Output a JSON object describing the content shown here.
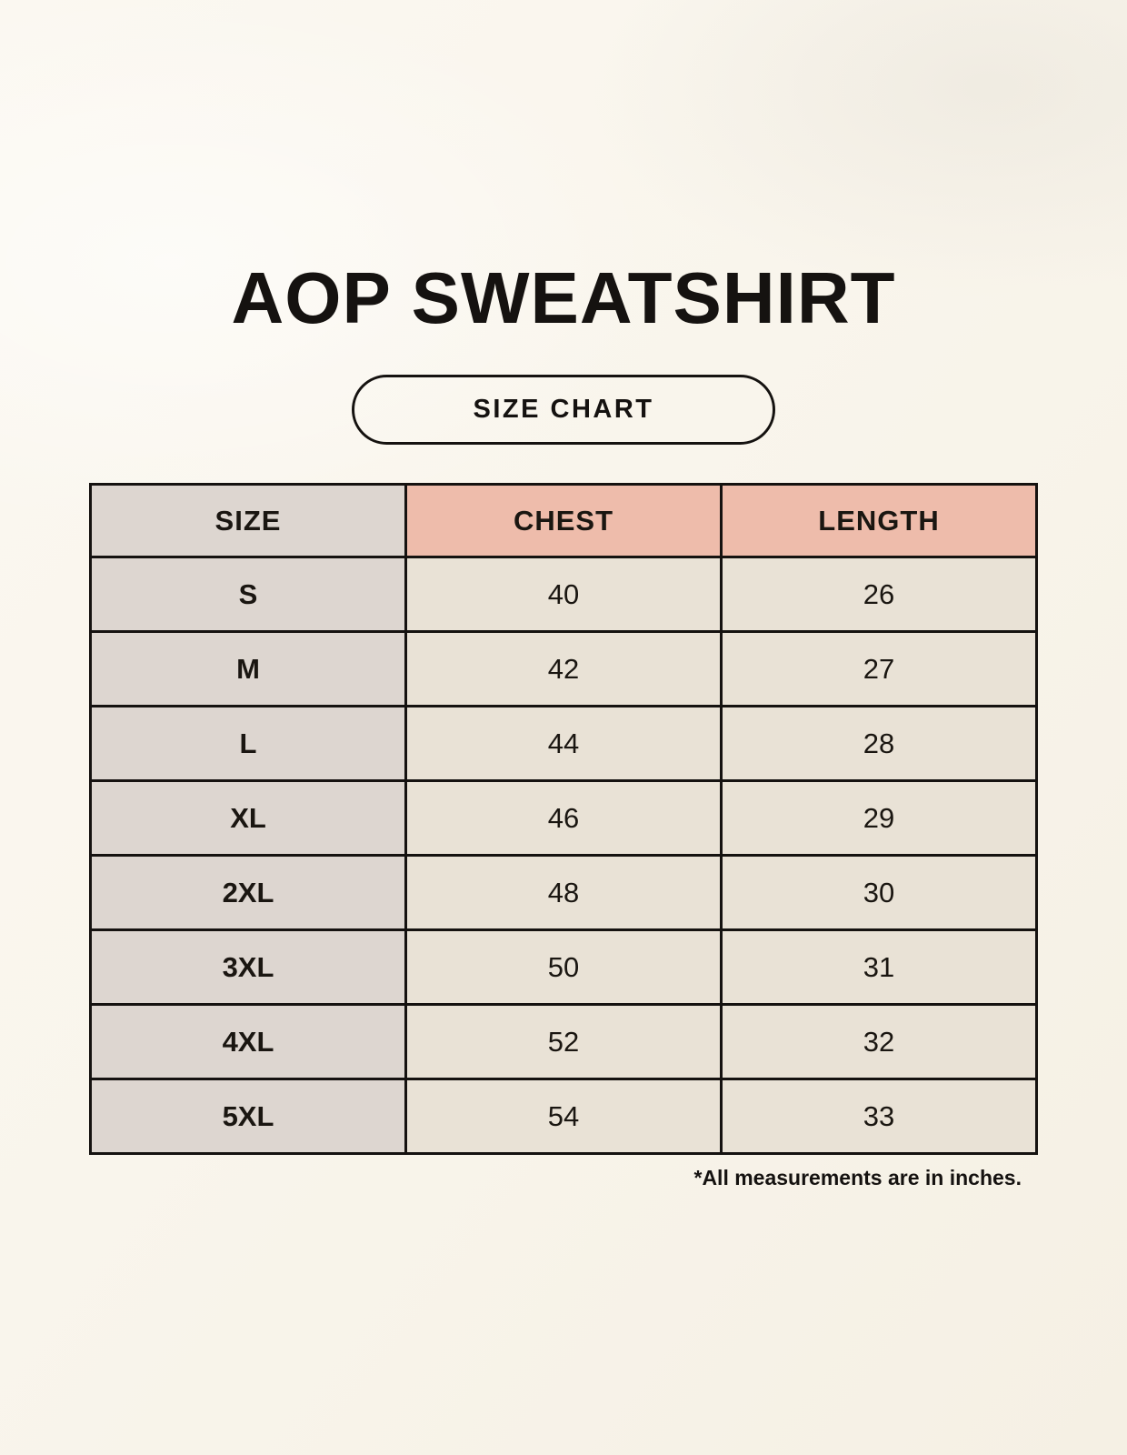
{
  "page": {
    "title": "AOP SWEATSHIRT",
    "badge_label": "SIZE CHART",
    "footnote": "*All measurements are in inches."
  },
  "colors": {
    "background": "#f9f5ec",
    "header_pink": "#eebcab",
    "size_column_gray": "#ddd6d0",
    "data_cell_cream": "#e9e2d6",
    "border_black": "#151210"
  },
  "chart_data": {
    "type": "table",
    "title": "AOP SWEATSHIRT",
    "subtitle": "SIZE CHART",
    "columns": [
      "SIZE",
      "CHEST",
      "LENGTH"
    ],
    "rows": [
      [
        "S",
        "40",
        "26"
      ],
      [
        "M",
        "42",
        "27"
      ],
      [
        "L",
        "44",
        "28"
      ],
      [
        "XL",
        "46",
        "29"
      ],
      [
        "2XL",
        "48",
        "30"
      ],
      [
        "3XL",
        "50",
        "31"
      ],
      [
        "4XL",
        "52",
        "32"
      ],
      [
        "5XL",
        "54",
        "33"
      ]
    ],
    "units_note": "*All measurements are in inches.",
    "layout_hints": {
      "grid": "full black borders",
      "size_column_shaded": true,
      "measurement_headers_shaded_pink": true
    }
  }
}
